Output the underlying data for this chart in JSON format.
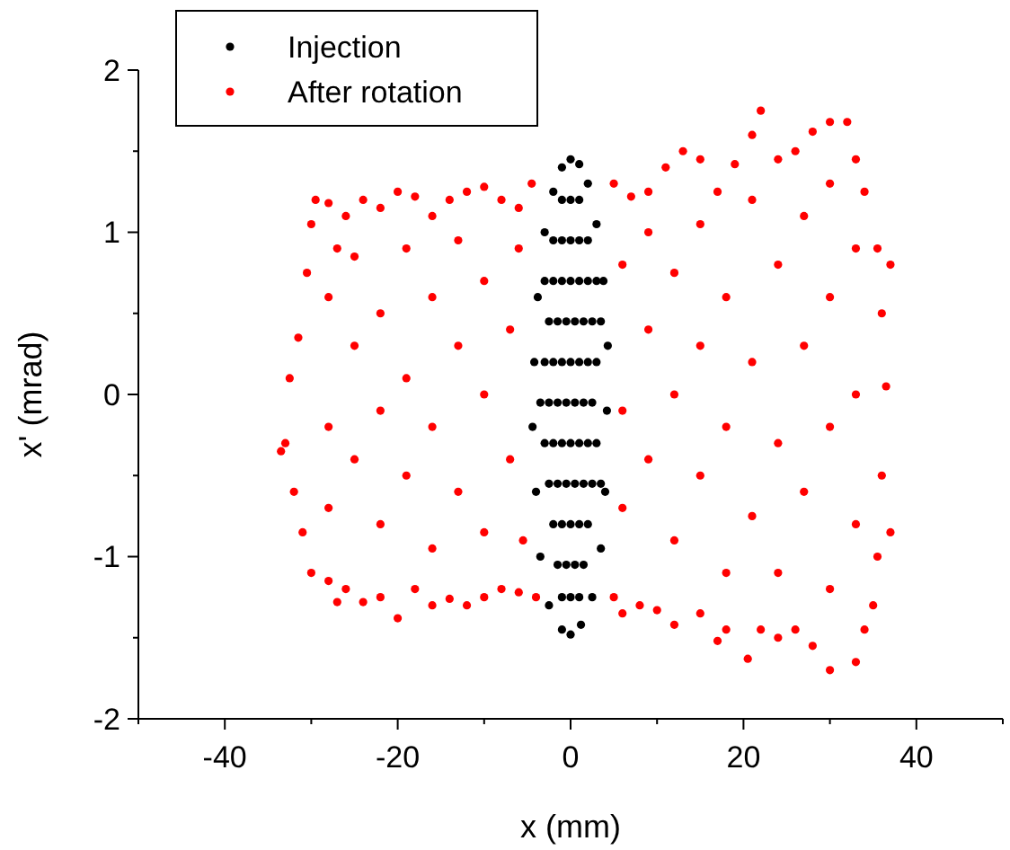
{
  "chart_data": {
    "type": "scatter",
    "xlabel": "x (mm)",
    "ylabel": "x' (mrad)",
    "xlim": [
      -50,
      50
    ],
    "ylim": [
      -2,
      2
    ],
    "xticks": [
      {
        "value": -50,
        "label": null
      },
      -40,
      {
        "value": -30,
        "label": null
      },
      -20,
      {
        "value": -10,
        "label": null
      },
      0,
      {
        "value": 10,
        "label": null
      },
      20,
      {
        "value": 30,
        "label": null
      },
      40,
      {
        "value": 50,
        "label": null
      }
    ],
    "yticks": [
      -2,
      {
        "value": -1.5,
        "label": null
      },
      -1,
      {
        "value": -0.5,
        "label": null
      },
      0,
      {
        "value": 0.5,
        "label": null
      },
      1,
      {
        "value": 1.5,
        "label": null
      },
      2
    ],
    "legend": "top left",
    "marker": "circle",
    "series": [
      {
        "name": "Injection",
        "color": "#000000",
        "x": [
          0,
          -1,
          1,
          -2,
          2,
          -3,
          3,
          -3.8,
          3.8,
          -4.2,
          4.3,
          -4.4,
          4.2,
          -4,
          4,
          -3.5,
          3.5,
          -2.5,
          2.5,
          -1,
          0,
          1.2,
          -1,
          0,
          1,
          -2,
          -1,
          0,
          1,
          2,
          -3,
          -2,
          -1,
          0,
          1,
          2,
          3,
          -2.5,
          -1.5,
          -0.5,
          0.5,
          1.5,
          2.5,
          3.5,
          -3,
          -2,
          -1,
          0,
          1,
          2,
          3,
          -3.5,
          -2.5,
          -1.5,
          -0.5,
          0.5,
          1.5,
          2.5,
          -3,
          -2,
          -1,
          0,
          1,
          2,
          3,
          -2.5,
          -1.5,
          -0.5,
          0.5,
          1.5,
          2.5,
          3.5,
          -2,
          -1,
          0,
          1,
          2,
          -1.5,
          -0.5,
          0.5,
          1.5,
          -1,
          0,
          1
        ],
        "values": [
          1.45,
          1.4,
          1.42,
          1.25,
          1.3,
          1.0,
          1.05,
          0.6,
          0.7,
          0.2,
          0.3,
          -0.2,
          -0.1,
          -0.6,
          -0.6,
          -1.0,
          -0.95,
          -1.3,
          -1.25,
          -1.45,
          -1.48,
          -1.42,
          1.2,
          1.2,
          1.2,
          0.95,
          0.95,
          0.95,
          0.95,
          0.95,
          0.7,
          0.7,
          0.7,
          0.7,
          0.7,
          0.7,
          0.7,
          0.45,
          0.45,
          0.45,
          0.45,
          0.45,
          0.45,
          0.45,
          0.2,
          0.2,
          0.2,
          0.2,
          0.2,
          0.2,
          0.2,
          -0.05,
          -0.05,
          -0.05,
          -0.05,
          -0.05,
          -0.05,
          -0.05,
          -0.3,
          -0.3,
          -0.3,
          -0.3,
          -0.3,
          -0.3,
          -0.3,
          -0.55,
          -0.55,
          -0.55,
          -0.55,
          -0.55,
          -0.55,
          -0.55,
          -0.8,
          -0.8,
          -0.8,
          -0.8,
          -0.8,
          -1.05,
          -1.05,
          -1.05,
          -1.05,
          -1.25,
          -1.25,
          -1.25
        ]
      },
      {
        "name": "After rotation",
        "color": "#ff0000",
        "x": [
          -33,
          -32.5,
          -31.5,
          -30.5,
          -30,
          -29.5,
          -28,
          -27,
          -26,
          -24,
          -22,
          -20,
          -18,
          -16,
          -14,
          -12,
          -10,
          -8,
          -6,
          -4.5,
          5,
          7,
          9,
          11,
          13,
          15,
          17,
          19,
          21,
          22,
          24,
          26,
          28,
          30,
          32,
          33,
          34,
          35.5,
          36,
          37,
          36.5,
          36,
          37,
          35.5,
          35,
          34,
          33,
          30,
          28,
          26,
          24,
          22,
          20.5,
          18,
          17,
          15,
          12,
          10,
          8,
          6,
          5,
          -4,
          -6,
          -8,
          -10,
          -12,
          -14,
          -16,
          -18,
          -20,
          -22,
          -24,
          -26,
          -27,
          -28,
          -30,
          -31,
          -32,
          -33.5,
          -28,
          -28,
          -28,
          -25,
          -25,
          -25,
          -22,
          -22,
          -22,
          -19,
          -19,
          -19,
          -16,
          -16,
          -16,
          -13,
          -13,
          -13,
          -10,
          -10,
          -10,
          -7,
          -7,
          -6,
          -5.5,
          6,
          6,
          6,
          9,
          9,
          9,
          12,
          12,
          12,
          15,
          15,
          15,
          18,
          18,
          18,
          21,
          21,
          21,
          24,
          24,
          24,
          27,
          27,
          27,
          30,
          30,
          30,
          30,
          33,
          33,
          33
        ],
        "values": [
          -0.3,
          0.1,
          0.35,
          0.75,
          1.05,
          1.2,
          1.18,
          0.9,
          1.1,
          1.2,
          1.15,
          1.25,
          1.22,
          1.1,
          1.2,
          1.25,
          1.28,
          1.2,
          1.15,
          1.3,
          1.3,
          1.22,
          1.25,
          1.4,
          1.5,
          1.45,
          1.25,
          1.42,
          1.6,
          1.75,
          1.45,
          1.5,
          1.62,
          1.68,
          1.68,
          1.45,
          1.25,
          0.9,
          0.5,
          0.8,
          0.05,
          -0.5,
          -0.85,
          -1.0,
          -1.3,
          -1.45,
          -1.65,
          -1.7,
          -1.55,
          -1.45,
          -1.5,
          -1.45,
          -1.63,
          -1.45,
          -1.52,
          -1.35,
          -1.42,
          -1.33,
          -1.3,
          -1.35,
          -1.25,
          -1.25,
          -1.22,
          -1.2,
          -1.25,
          -1.3,
          -1.26,
          -1.3,
          -1.2,
          -1.38,
          -1.25,
          -1.28,
          -1.2,
          -1.28,
          -1.15,
          -1.1,
          -0.85,
          -0.6,
          -0.35,
          0.6,
          -0.2,
          -0.7,
          0.3,
          -0.4,
          0.85,
          0.5,
          -0.1,
          -0.8,
          0.9,
          0.1,
          -0.5,
          0.6,
          -0.2,
          -0.95,
          0.3,
          -0.6,
          0.95,
          0.7,
          0,
          -0.85,
          0.4,
          -0.4,
          0.9,
          -0.9,
          0.8,
          -0.1,
          -0.7,
          0.4,
          -0.4,
          1.0,
          0.75,
          0,
          -0.9,
          1.05,
          0.3,
          -0.5,
          0.6,
          -0.2,
          -1.1,
          1.2,
          0.2,
          -0.75,
          0.8,
          -0.3,
          -1.1,
          1.1,
          0.3,
          -0.6,
          1.3,
          0.6,
          -0.2,
          -1.2,
          0.9,
          0,
          -0.8
        ]
      }
    ]
  }
}
